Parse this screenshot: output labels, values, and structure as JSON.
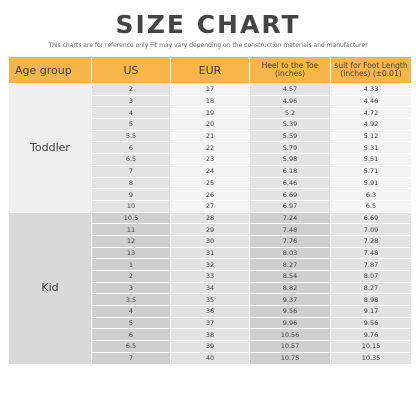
{
  "title": "SIZE CHART",
  "subtitle": "This charts are for reference only Fit may vary depending on the construction materials and manufacturer",
  "headers": {
    "age_group": "Age group",
    "us": "US",
    "eur": "EUR",
    "heel_line1": "Heel to the Toe",
    "heel_line2": "(inches)",
    "foot_line1": "suit for Foot Length",
    "foot_line2": "(inches) (±0.01)"
  },
  "groups": [
    {
      "label": "Toddler",
      "rows": [
        {
          "us": "2",
          "eur": "17",
          "heel": "4.57",
          "foot": "4.33"
        },
        {
          "us": "3",
          "eur": "18",
          "heel": "4.96",
          "foot": "4.46"
        },
        {
          "us": "4",
          "eur": "19",
          "heel": "5.2",
          "foot": "4.72"
        },
        {
          "us": "5",
          "eur": "20",
          "heel": "5.39",
          "foot": "4.92"
        },
        {
          "us": "5.5",
          "eur": "21",
          "heel": "5.59",
          "foot": "5.12"
        },
        {
          "us": "6",
          "eur": "22",
          "heel": "5.79",
          "foot": "5.31"
        },
        {
          "us": "6.5",
          "eur": "23",
          "heel": "5.98",
          "foot": "5.51"
        },
        {
          "us": "7",
          "eur": "24",
          "heel": "6.18",
          "foot": "5.71"
        },
        {
          "us": "8",
          "eur": "25",
          "heel": "6.46",
          "foot": "5.91"
        },
        {
          "us": "9",
          "eur": "26",
          "heel": "6.69",
          "foot": "6.3"
        },
        {
          "us": "10",
          "eur": "27",
          "heel": "6.97",
          "foot": "6.5"
        }
      ]
    },
    {
      "label": "Kid",
      "rows": [
        {
          "us": "10.5",
          "eur": "28",
          "heel": "7.24",
          "foot": "6.69"
        },
        {
          "us": "11",
          "eur": "29",
          "heel": "7.48",
          "foot": "7.09"
        },
        {
          "us": "12",
          "eur": "30",
          "heel": "7.76",
          "foot": "7.28"
        },
        {
          "us": "13",
          "eur": "31",
          "heel": "8.03",
          "foot": "7.48"
        },
        {
          "us": "1",
          "eur": "32",
          "heel": "8.27",
          "foot": "7.87"
        },
        {
          "us": "2",
          "eur": "33",
          "heel": "8.54",
          "foot": "8.07"
        },
        {
          "us": "3",
          "eur": "34",
          "heel": "8.82",
          "foot": "8.27"
        },
        {
          "us": "3.5",
          "eur": "35",
          "heel": "9.37",
          "foot": "8.98"
        },
        {
          "us": "4",
          "eur": "36",
          "heel": "9.56",
          "foot": "9.17"
        },
        {
          "us": "5",
          "eur": "37",
          "heel": "9.96",
          "foot": "9.56"
        },
        {
          "us": "6",
          "eur": "38",
          "heel": "10.56",
          "foot": "9.76"
        },
        {
          "us": "6.5",
          "eur": "39",
          "heel": "10.57",
          "foot": "10.15"
        },
        {
          "us": "7",
          "eur": "40",
          "heel": "10.75",
          "foot": "10.35"
        }
      ]
    }
  ],
  "colors": {
    "header_bg": "#f7b54a",
    "toddler_bg": "#f4f4f4",
    "kid_bg": "#e2e2e2"
  }
}
